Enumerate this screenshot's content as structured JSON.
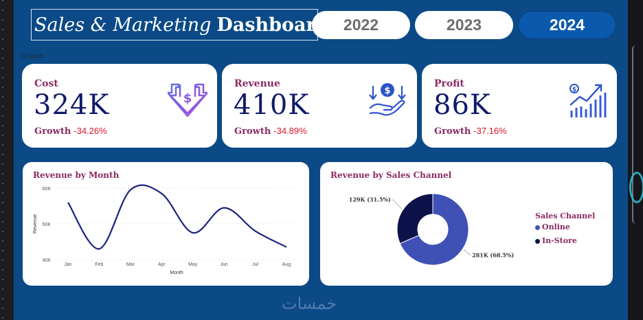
{
  "header": {
    "title_italic": "Sales & Marketing",
    "title_bold": "Dashboard",
    "years": [
      {
        "label": "2022",
        "active": false
      },
      {
        "label": "2023",
        "active": false
      },
      {
        "label": "2024",
        "active": true
      }
    ]
  },
  "section_label": "Growth",
  "kpis": [
    {
      "title": "Cost",
      "value": "324K",
      "growth_label": "Growth",
      "growth_value": "-34.26%",
      "icon": "cost-down-arrow-icon"
    },
    {
      "title": "Revenue",
      "value": "410K",
      "growth_label": "Growth",
      "growth_value": "-34.89%",
      "icon": "hand-dollar-icon"
    },
    {
      "title": "Profit",
      "value": "86K",
      "growth_label": "Growth",
      "growth_value": "-37.16%",
      "icon": "growth-bar-chart-icon"
    }
  ],
  "colors": {
    "background": "#0b4a86",
    "kpi_title": "#8b2a62",
    "kpi_value": "#101a6b",
    "negative": "#e0162b",
    "line": "#1a237e",
    "online": "#3f51b5",
    "instore": "#0d124a",
    "active_year": "#0b59ad",
    "icon_purple": "#8d55e5",
    "icon_blue": "#3a5bd9"
  },
  "chart_data": [
    {
      "type": "line",
      "title": "Revenue by Month",
      "xlabel": "Month",
      "ylabel": "Revenue",
      "categories": [
        "Jan",
        "Feb",
        "Mar",
        "Apr",
        "May",
        "Jun",
        "Jul",
        "Aug"
      ],
      "values": [
        56000,
        43000,
        59500,
        58500,
        47500,
        54500,
        48000,
        43500
      ],
      "yticks": [
        {
          "value": 40000,
          "label": "40K"
        },
        {
          "value": 50000,
          "label": "50K"
        },
        {
          "value": 60000,
          "label": "60K"
        }
      ],
      "ylim": [
        40000,
        60000
      ],
      "grid": true
    },
    {
      "type": "pie",
      "title": "Revenue by Sales Channel",
      "legend_title": "Sales Channel",
      "legend_position": "right",
      "slices": [
        {
          "name": "Online",
          "value": 281,
          "label": "281K (68.5%)",
          "color": "#3f51b5"
        },
        {
          "name": "In-Store",
          "value": 129,
          "label": "129K (31.5%)",
          "color": "#0d124a"
        }
      ]
    }
  ],
  "watermark": "خمسات"
}
